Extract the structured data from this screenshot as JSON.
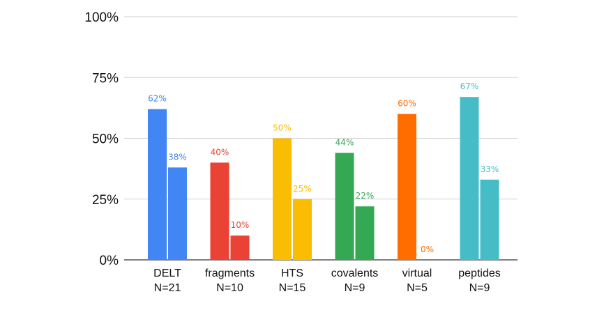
{
  "chart_data": {
    "type": "bar",
    "title": "",
    "xlabel": "",
    "ylabel": "",
    "ylim": [
      0,
      100
    ],
    "yticks": [
      {
        "value": 0,
        "label": "0%"
      },
      {
        "value": 25,
        "label": "25%"
      },
      {
        "value": 50,
        "label": "50%"
      },
      {
        "value": 75,
        "label": "75%"
      },
      {
        "value": 100,
        "label": "100%"
      }
    ],
    "grid": true,
    "legend": "none",
    "groups": [
      {
        "name": "DELT",
        "n_label": "N=21",
        "color": "#4285f4",
        "bars": [
          {
            "value": 62,
            "label": "62%"
          },
          {
            "value": 38,
            "label": "38%"
          }
        ]
      },
      {
        "name": "fragments",
        "n_label": "N=10",
        "color": "#ea4335",
        "bars": [
          {
            "value": 40,
            "label": "40%"
          },
          {
            "value": 10,
            "label": "10%"
          }
        ]
      },
      {
        "name": "HTS",
        "n_label": "N=15",
        "color": "#fbbc04",
        "bars": [
          {
            "value": 50,
            "label": "50%"
          },
          {
            "value": 25,
            "label": "25%"
          }
        ]
      },
      {
        "name": "covalents",
        "n_label": "N=9",
        "color": "#34a853",
        "bars": [
          {
            "value": 44,
            "label": "44%"
          },
          {
            "value": 22,
            "label": "22%"
          }
        ]
      },
      {
        "name": "virtual",
        "n_label": "N=5",
        "color": "#ff6d01",
        "bars": [
          {
            "value": 60,
            "label": "60%"
          },
          {
            "value": 0,
            "label": "0%"
          }
        ]
      },
      {
        "name": "peptides",
        "n_label": "N=9",
        "color": "#46bdc6",
        "bars": [
          {
            "value": 67,
            "label": "67%"
          },
          {
            "value": 33,
            "label": "33%"
          }
        ]
      }
    ]
  }
}
